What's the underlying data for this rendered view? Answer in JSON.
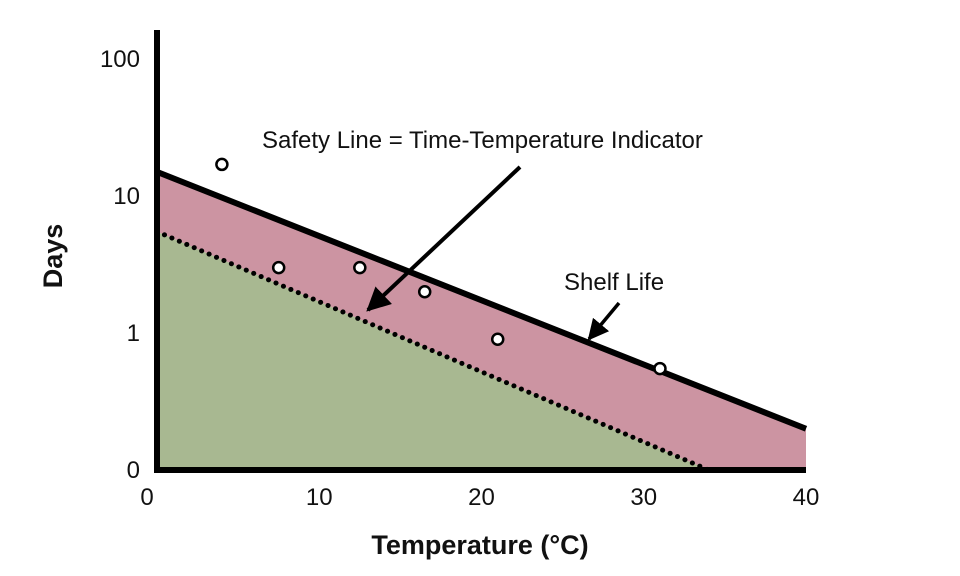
{
  "chart_data": {
    "type": "line",
    "title": "",
    "xlabel": "Temperature (°C)",
    "ylabel": "Days",
    "xlim": [
      0,
      40
    ],
    "x_ticks": [
      0,
      10,
      20,
      30,
      40
    ],
    "y_ticks": [
      "0",
      "1",
      "10",
      "100"
    ],
    "y_scale": "log",
    "grid": false,
    "legend": "none",
    "series": [
      {
        "key": "shelf",
        "style": "solid",
        "color": "#000000",
        "points": [
          {
            "x": 0,
            "y": 15
          },
          {
            "x": 40,
            "y": 0.2
          }
        ]
      },
      {
        "key": "safety",
        "style": "dotted",
        "color": "#000000",
        "points": [
          {
            "x": 0,
            "y": 5.5
          },
          {
            "x": 34,
            "y": 0.1
          }
        ]
      },
      {
        "key": "observed",
        "type": "scatter",
        "marker": "open-circle",
        "points": [
          {
            "x": 4,
            "y": 17
          },
          {
            "x": 7.5,
            "y": 3
          },
          {
            "x": 12.5,
            "y": 3
          },
          {
            "x": 16.5,
            "y": 2
          },
          {
            "x": 21,
            "y": 0.9
          },
          {
            "x": 31,
            "y": 0.55
          }
        ]
      }
    ],
    "regions": [
      {
        "key": "between",
        "between": [
          "shelf",
          "safety"
        ],
        "color": "#cc94a2"
      },
      {
        "key": "below",
        "below": "safety",
        "color": "#a8b891"
      }
    ],
    "annotations": [
      {
        "key": "safety",
        "text": "Safety Line = Time-Temperature Indicator",
        "points_to": {
          "x": 13,
          "y": 1.2
        }
      },
      {
        "key": "shelf",
        "text": "Shelf Life",
        "points_to": {
          "x": 26.5,
          "y": 0.85
        }
      }
    ]
  }
}
